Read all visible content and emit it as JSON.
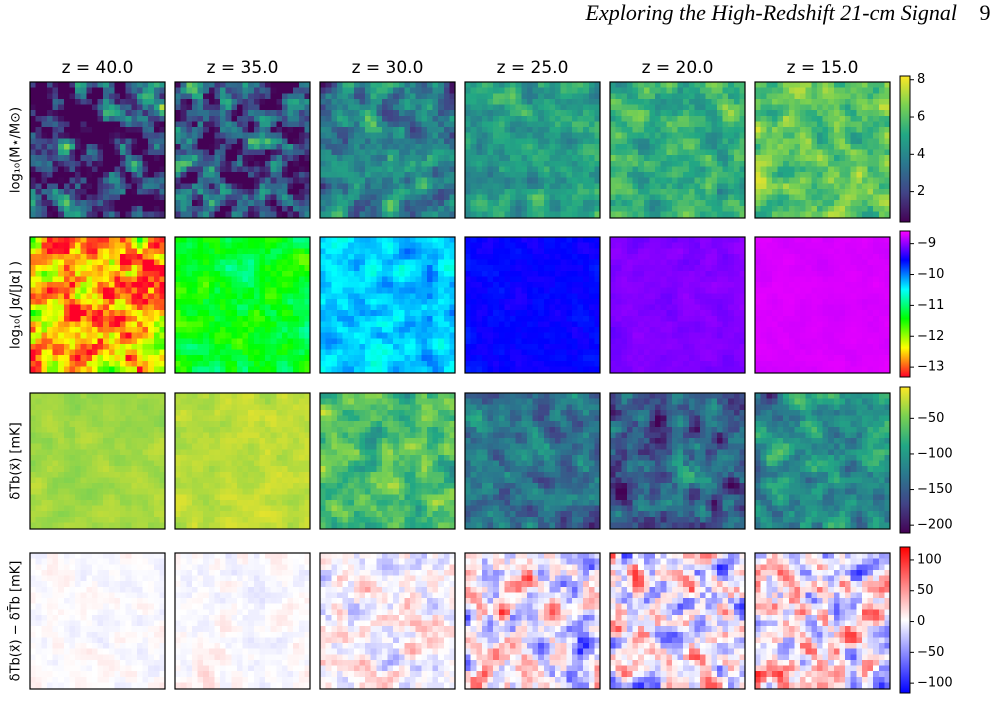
{
  "header": {
    "title": "Exploring the High-Redshift 21-cm Signal",
    "page": "9"
  },
  "figure": {
    "columns": [
      "z = 40.0",
      "z = 35.0",
      "z = 30.0",
      "z = 25.0",
      "z = 20.0",
      "z = 15.0"
    ],
    "rows": [
      {
        "label": "log₁₀(M⋆/M⊙)",
        "colormap": "viridis",
        "colorbar": {
          "range": [
            0.37,
            8.2
          ],
          "ticks": [
            2,
            4,
            6,
            8
          ]
        }
      },
      {
        "label": "log₁₀( Jα/[Jα] )",
        "colormap": "gist_rainbow",
        "colorbar": {
          "range": [
            -13.32,
            -8.59
          ],
          "ticks": [
            {
              "value": -13,
              "label": "−13"
            },
            {
              "value": -12,
              "label": "−12"
            },
            {
              "value": -11,
              "label": "−11"
            },
            {
              "value": -10,
              "label": "−10"
            },
            {
              "value": -9,
              "label": "−9"
            }
          ]
        }
      },
      {
        "label": "δTb(x⃗) [mK]",
        "colormap": "viridis",
        "colorbar": {
          "range": [
            -211,
            -6
          ],
          "ticks": [
            {
              "value": -200,
              "label": "−200"
            },
            {
              "value": -150,
              "label": "−150"
            },
            {
              "value": -100,
              "label": "−100"
            },
            {
              "value": -50,
              "label": "−50"
            }
          ]
        }
      },
      {
        "label": "δTb(x⃗) − δT̄b [mK]",
        "colormap": "bwr",
        "colorbar": {
          "range": [
            -116,
            121
          ],
          "ticks": [
            {
              "value": -100,
              "label": "−100"
            },
            {
              "value": -50,
              "label": "−50"
            },
            0,
            50,
            100
          ]
        }
      }
    ]
  }
}
